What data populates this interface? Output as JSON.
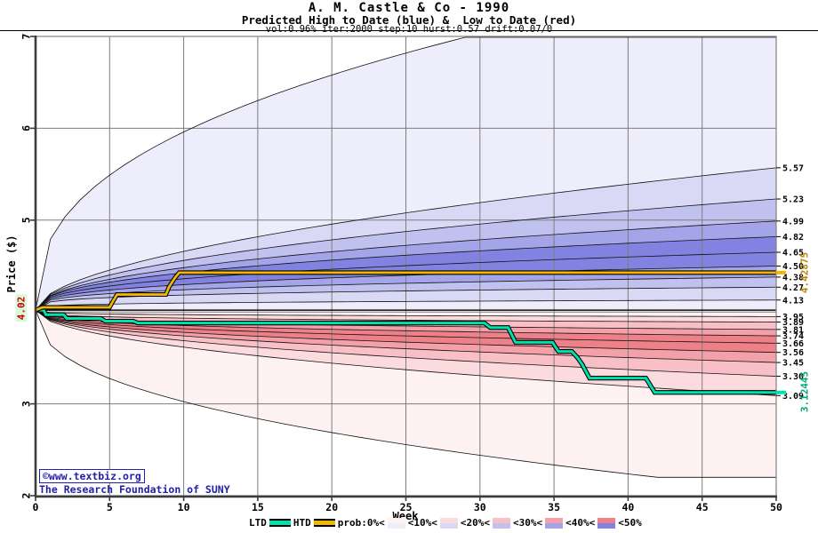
{
  "title": {
    "line1": "A. M. Castle & Co - 1990",
    "line2": "Predicted High to Date (blue) &  Low to Date (red)",
    "line3": "vol:0.96% iter:2000 step:10 hurst:0.57 drift:0.07/0"
  },
  "branding": {
    "line1": "©www.textbiz.org",
    "line2": "The Research Foundation of SUNY",
    "color": "#2121aa"
  },
  "legend": {
    "ltd_label": "LTD",
    "htd_label": "HTD",
    "prob_label": "prob:0%<",
    "bands": [
      {
        "label": "<10%<"
      },
      {
        "label": "<20%<"
      },
      {
        "label": "<30%<"
      },
      {
        "label": "<40%<"
      },
      {
        "label": "<50%"
      }
    ]
  },
  "chart_data": {
    "type": "area",
    "subtype": "probability-fan",
    "title": "A. M. Castle & Co - 1990",
    "subtitle": "Predicted High to Date (blue) &  Low to Date (red)",
    "params_text": "vol:0.96% iter:2000 step:10 hurst:0.57 drift:0.07/0",
    "xlabel": "Week",
    "ylabel": "Price ($)",
    "xlim": [
      0,
      50
    ],
    "ylim": [
      2,
      7
    ],
    "grid": true,
    "x_ticks": [
      0,
      5,
      10,
      15,
      20,
      25,
      30,
      35,
      40,
      45,
      50
    ],
    "y_ticks": [
      7,
      6,
      5,
      3,
      2
    ],
    "start_value": 4.02,
    "start_label": {
      "text": "4.02",
      "color": "#cc0000",
      "bg": "#d9f7d9"
    },
    "boundary_percentiles": [
      10,
      20,
      30,
      40,
      50,
      60,
      70,
      80,
      90
    ],
    "band_levels": [
      0,
      1,
      2,
      3,
      4,
      4,
      3,
      2,
      1,
      0
    ],
    "blue_colors": [
      "#ededfb",
      "#d9d9f6",
      "#c1c1f0",
      "#a4a4e9",
      "#8282e0"
    ],
    "red_colors": [
      "#fdf1f1",
      "#fbdbde",
      "#f8c0c6",
      "#f3a0a8",
      "#ee8089"
    ],
    "blue_fan": {
      "boundaries": [
        {
          "end": 4.13,
          "label": "4.13",
          "alpha": 0.22
        },
        {
          "end": 4.27,
          "label": "4.27",
          "alpha": 0.26
        },
        {
          "end": 4.38,
          "label": "4.38",
          "alpha": 0.3
        },
        {
          "end": 4.5,
          "label": "4.50",
          "alpha": 0.34
        },
        {
          "end": 4.65,
          "label": "4.65",
          "alpha": 0.38
        },
        {
          "end": 4.82,
          "label": "4.82",
          "alpha": 0.42
        },
        {
          "end": 4.99,
          "label": "4.99",
          "alpha": 0.46
        },
        {
          "end": 5.23,
          "label": "5.23",
          "alpha": 0.5
        },
        {
          "end": 5.57,
          "label": "5.57",
          "alpha": 0.55
        }
      ],
      "envelope": {
        "end": 6.99,
        "alpha": 0.4,
        "cap_week": 29
      }
    },
    "red_fan": {
      "boundaries": [
        {
          "end": 3.95,
          "label": "3.95",
          "alpha": 0.22
        },
        {
          "end": 3.89,
          "label": "3.89",
          "alpha": 0.25
        },
        {
          "end": 3.81,
          "label": "3.81",
          "alpha": 0.28
        },
        {
          "end": 3.74,
          "label": "3.74",
          "alpha": 0.32
        },
        {
          "end": 3.66,
          "label": "3.66",
          "alpha": 0.36
        },
        {
          "end": 3.56,
          "label": "3.56",
          "alpha": 0.4
        },
        {
          "end": 3.45,
          "label": "3.45",
          "alpha": 0.44
        },
        {
          "end": 3.3,
          "label": "3.30",
          "alpha": 0.48
        },
        {
          "end": 3.09,
          "label": "3.09",
          "alpha": 0.52
        }
      ],
      "envelope": {
        "end": 2.2,
        "alpha": 0.42,
        "cap_week": 42
      }
    },
    "htd": {
      "name": "HTD",
      "color": "#f2b705",
      "final_value": 4.42875,
      "final_label": "4.42875",
      "label_color": "#b8860b",
      "steps": [
        [
          0,
          4.02
        ],
        [
          0.45,
          4.05
        ],
        [
          5.0,
          4.05
        ],
        [
          5.2,
          4.11
        ],
        [
          5.5,
          4.19
        ],
        [
          8.8,
          4.19
        ],
        [
          9.0,
          4.27
        ],
        [
          9.4,
          4.37
        ],
        [
          9.7,
          4.42875
        ],
        [
          50,
          4.42875
        ]
      ]
    },
    "ltd": {
      "name": "LTD",
      "color": "#00e2ae",
      "final_value": 3.12445,
      "final_label": "3.12445",
      "label_color": "#00a878",
      "steps": [
        [
          0,
          4.02
        ],
        [
          0.55,
          4.02
        ],
        [
          0.7,
          3.97
        ],
        [
          1.9,
          3.97
        ],
        [
          2.1,
          3.93
        ],
        [
          4.4,
          3.93
        ],
        [
          4.7,
          3.9
        ],
        [
          6.6,
          3.9
        ],
        [
          6.9,
          3.88
        ],
        [
          30.3,
          3.88
        ],
        [
          30.7,
          3.83
        ],
        [
          31.9,
          3.83
        ],
        [
          32.4,
          3.67
        ],
        [
          34.9,
          3.67
        ],
        [
          35.3,
          3.57
        ],
        [
          36.2,
          3.57
        ],
        [
          36.6,
          3.5
        ],
        [
          36.9,
          3.43
        ],
        [
          37.4,
          3.28
        ],
        [
          41.2,
          3.28
        ],
        [
          41.8,
          3.12445
        ],
        [
          50,
          3.12445
        ]
      ]
    }
  }
}
